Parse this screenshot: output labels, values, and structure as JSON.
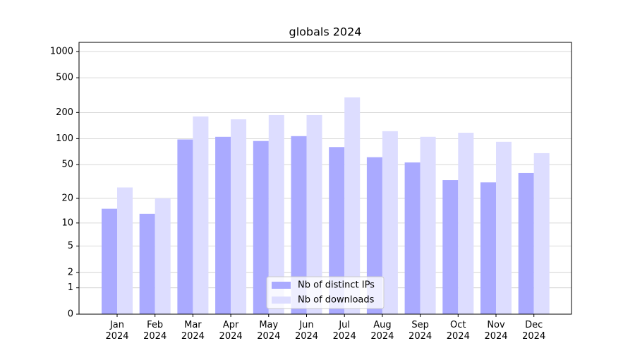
{
  "chart_data": {
    "type": "bar",
    "title": "globals 2024",
    "categories": [
      "Jan\n2024",
      "Feb\n2024",
      "Mar\n2024",
      "Apr\n2024",
      "May\n2024",
      "Jun\n2024",
      "Jul\n2024",
      "Aug\n2024",
      "Sep\n2024",
      "Oct\n2024",
      "Nov\n2024",
      "Dec\n2024"
    ],
    "series": [
      {
        "name": "Nb of distinct IPs",
        "color": "#aaaaff",
        "values": [
          15,
          13,
          98,
          105,
          94,
          107,
          80,
          61,
          53,
          33,
          31,
          40
        ]
      },
      {
        "name": "Nb of downloads",
        "color": "#ddddff",
        "values": [
          27,
          20,
          180,
          167,
          187,
          187,
          298,
          122,
          105,
          117,
          92,
          68
        ]
      }
    ],
    "yscale": "log1p",
    "ylim": [
      0,
      1270
    ],
    "yticks": [
      0,
      1,
      2,
      5,
      10,
      20,
      50,
      100,
      200,
      500,
      1000
    ],
    "grid": true,
    "legend": "lower center"
  }
}
